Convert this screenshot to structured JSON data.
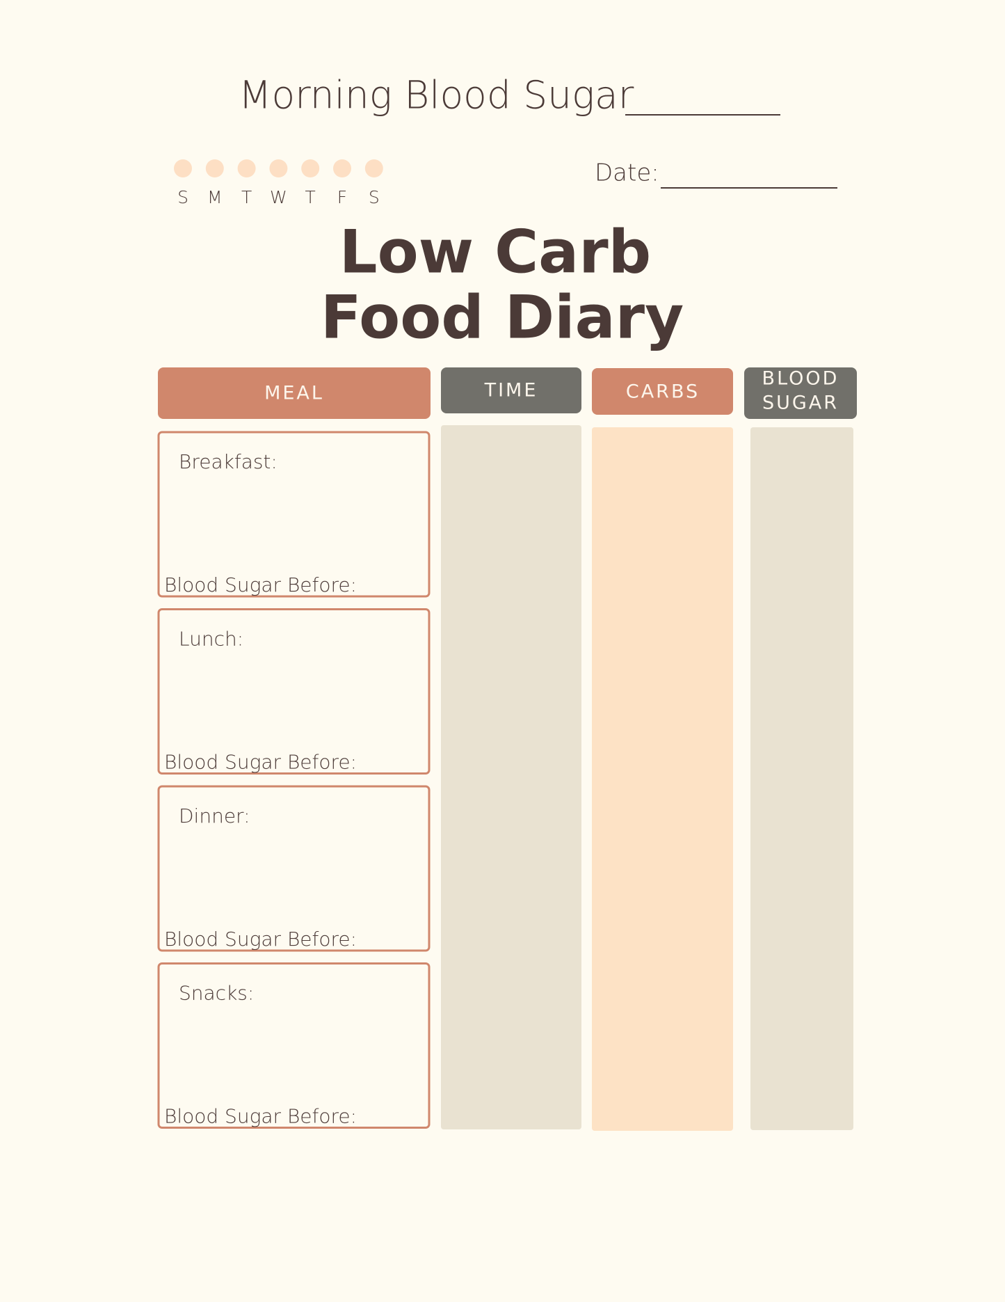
{
  "header": {
    "morning_label": "Morning Blood Sugar",
    "date_label": "Date:",
    "days": [
      "S",
      "M",
      "T",
      "W",
      "T",
      "F",
      "S"
    ],
    "title": [
      "Low Carb",
      "Food Diary"
    ]
  },
  "table": {
    "columns": [
      "MEAL",
      "TIME",
      "CARBS",
      [
        "BLOOD",
        "SUGAR"
      ]
    ],
    "meals": [
      {
        "label": "Breakfast:",
        "note": "Blood Sugar Before:"
      },
      {
        "label": "Lunch:",
        "note": "Blood Sugar Before:"
      },
      {
        "label": "Dinner:",
        "note": "Blood Sugar Before:"
      },
      {
        "label": "Snacks:",
        "note": "Blood Sugar Before:"
      }
    ]
  }
}
